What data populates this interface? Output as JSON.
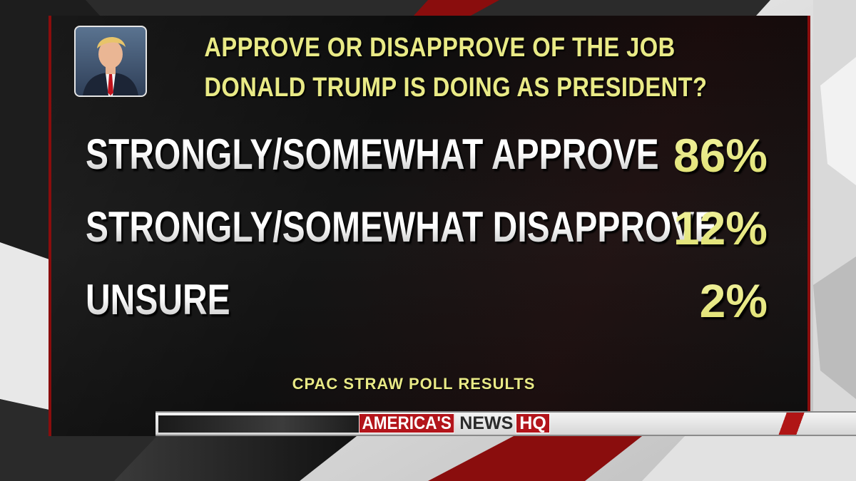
{
  "graphic": {
    "title_line1": "APPROVE OR DISAPPROVE OF THE JOB",
    "title_line2": "DONALD TRUMP IS DOING AS PRESIDENT?",
    "rows": [
      {
        "label": "STRONGLY/SOMEWHAT APPROVE",
        "value": "86%"
      },
      {
        "label": "STRONGLY/SOMEWHAT DISAPPROVE",
        "value": "12%"
      },
      {
        "label": "UNSURE",
        "value": "2%"
      }
    ],
    "source": "CPAC STRAW POLL RESULTS"
  },
  "branding": {
    "logo_part1": "AMERICA'S",
    "logo_part2": "NEWS",
    "logo_part3": "HQ"
  },
  "colors": {
    "title_yellow": "#e9ea86",
    "panel_black": "#0c0c0c",
    "accent_red": "#b3151b",
    "label_white": "#ffffff"
  },
  "icons": {
    "portrait": "person-portrait-icon"
  }
}
